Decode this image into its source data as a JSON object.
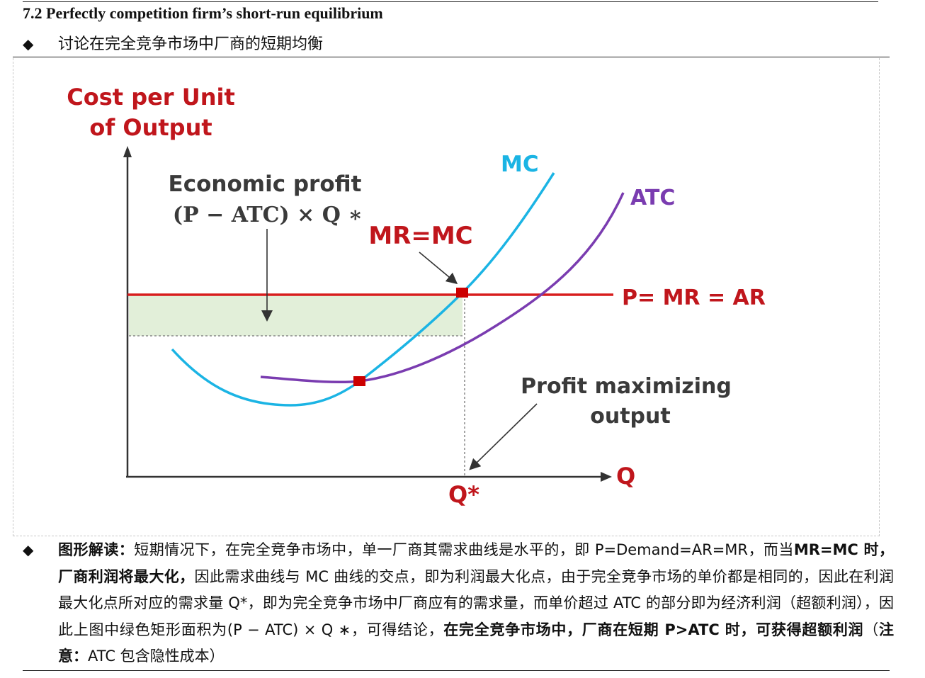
{
  "header": {
    "section_title": "7.2 Perfectly competition firm’s short-run equilibrium",
    "bullet_symbol": "◆",
    "subtitle": "讨论在完全竞争市场中厂商的短期均衡"
  },
  "chart_data": {
    "type": "line",
    "ylabel_line1": "Cost per Unit",
    "ylabel_line2": "of Output",
    "xlabel": "Q",
    "x_tick_label": "Q*",
    "series": [
      {
        "name": "MC",
        "color": "#1bb4e4"
      },
      {
        "name": "ATC",
        "color": "#7a3cb0"
      },
      {
        "name": "P= MR = AR",
        "color": "#d81e1e"
      }
    ],
    "annotations": {
      "economic_profit_title": "Economic profit",
      "economic_profit_formula": "(P − ATC) × Q ∗",
      "mr_mc": "MR=MC",
      "profit_max_line1": "Profit maximizing",
      "profit_max_line2": "output"
    },
    "colors": {
      "axis_label": "#c0161c",
      "annotation_dark": "#3a3a3a",
      "profit_area": "#e2efd9",
      "marker": "#cc0000"
    }
  },
  "explanation": {
    "bullet_symbol": "◆",
    "s1_bold": "图形解读：",
    "s2": "短期情况下，在完全竞争市场中，单一厂商其需求曲线是水平的，即 P=Demand=AR=MR，而当",
    "s3_bold": "MR=MC 时，厂商利润将最大化，",
    "s4": "因此需求曲线与 MC 曲线的交点，即为利润最大化点，由于完全竞争市场的单价都是相同的，因此在利润最大化点所对应的需求量 Q*，即为完全竞争市场中厂商应有的需求量，而单价超过 ATC 的部分即为经济利润（超额利润），因此上图中绿色矩形面积为(P − ATC) × Q ∗，可得结论，",
    "s5_bold": "在完全竞争市场中，厂商在短期 P>ATC 时，可获得超额利润",
    "s6": "（",
    "s7_bold": "注意：",
    "s8": "ATC 包含隐性成本）"
  }
}
